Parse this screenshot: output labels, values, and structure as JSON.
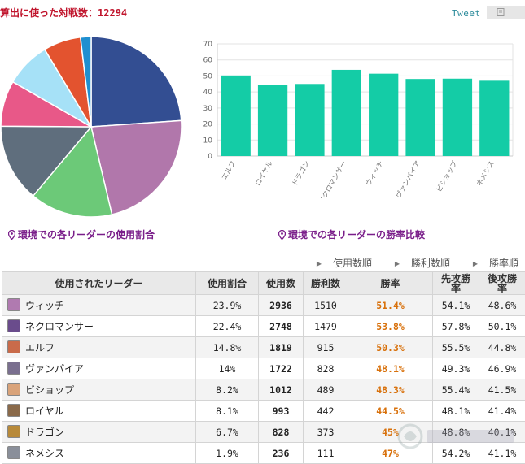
{
  "header": {
    "title_label": "算出に使った対戦数：",
    "title_value": "12294",
    "tweet_label": "Tweet"
  },
  "chart_data": [
    {
      "type": "pie",
      "title": "環境での各リーダーの使用割合",
      "slices": [
        {
          "label": "ウィッチ",
          "value": 23.9,
          "color": "#334e92"
        },
        {
          "label": "ネクロマンサー",
          "value": 22.4,
          "color": "#b177ab"
        },
        {
          "label": "エルフ",
          "value": 14.8,
          "color": "#6cc978"
        },
        {
          "label": "ヴァンパイア",
          "value": 14,
          "color": "#5f6e7d"
        },
        {
          "label": "ビショップ",
          "value": 8.2,
          "color": "#e85888"
        },
        {
          "label": "ロイヤル",
          "value": 8.1,
          "color": "#a6e1f7"
        },
        {
          "label": "ドラゴン",
          "value": 6.7,
          "color": "#e3532f"
        },
        {
          "label": "ネメシス",
          "value": 1.9,
          "color": "#1f8fd0"
        }
      ]
    },
    {
      "type": "bar",
      "title": "環境での各リーダーの勝率比較",
      "categories": [
        "エルフ",
        "ロイヤル",
        "ドラゴン",
        "ネクロマンサー",
        "ウィッチ",
        "ヴァンパイア",
        "ビショップ",
        "ネメシス"
      ],
      "values": [
        50.3,
        44.5,
        45,
        53.8,
        51.4,
        48.1,
        48.3,
        47
      ],
      "yticks": [
        "0",
        "10",
        "20",
        "30",
        "40",
        "50",
        "60",
        "70"
      ],
      "ylim": [
        0,
        70
      ],
      "grid": true,
      "color": "#14cca6"
    }
  ],
  "sort_options": [
    "使用数順",
    "勝利数順",
    "勝率順"
  ],
  "table": {
    "headers": {
      "leader": "使用されたリーダー",
      "share": "使用割合",
      "used": "使用数",
      "wins": "勝利数",
      "rate": "勝率",
      "first": "先攻勝率",
      "second": "後攻勝率"
    },
    "rows": [
      {
        "name": "ウィッチ",
        "share": "23.9%",
        "used": "2936",
        "wins": "1510",
        "rate": "51.4%",
        "first": "54.1%",
        "second": "48.6%",
        "avatar": "#b07ab0"
      },
      {
        "name": "ネクロマンサー",
        "share": "22.4%",
        "used": "2748",
        "wins": "1479",
        "rate": "53.8%",
        "first": "57.8%",
        "second": "50.1%",
        "avatar": "#6a4c8c"
      },
      {
        "name": "エルフ",
        "share": "14.8%",
        "used": "1819",
        "wins": "915",
        "rate": "50.3%",
        "first": "55.5%",
        "second": "44.8%",
        "avatar": "#c96b4a"
      },
      {
        "name": "ヴァンパイア",
        "share": "14%",
        "used": "1722",
        "wins": "828",
        "rate": "48.1%",
        "first": "49.3%",
        "second": "46.9%",
        "avatar": "#7a6f8f"
      },
      {
        "name": "ビショップ",
        "share": "8.2%",
        "used": "1012",
        "wins": "489",
        "rate": "48.3%",
        "first": "55.4%",
        "second": "41.5%",
        "avatar": "#d9a37a"
      },
      {
        "name": "ロイヤル",
        "share": "8.1%",
        "used": "993",
        "wins": "442",
        "rate": "44.5%",
        "first": "48.1%",
        "second": "41.4%",
        "avatar": "#8a6a4a"
      },
      {
        "name": "ドラゴン",
        "share": "6.7%",
        "used": "828",
        "wins": "373",
        "rate": "45%",
        "first": "48.8%",
        "second": "40.1%",
        "avatar": "#b88a3a"
      },
      {
        "name": "ネメシス",
        "share": "1.9%",
        "used": "236",
        "wins": "111",
        "rate": "47%",
        "first": "54.2%",
        "second": "41.1%",
        "avatar": "#8a8f9a"
      }
    ]
  }
}
